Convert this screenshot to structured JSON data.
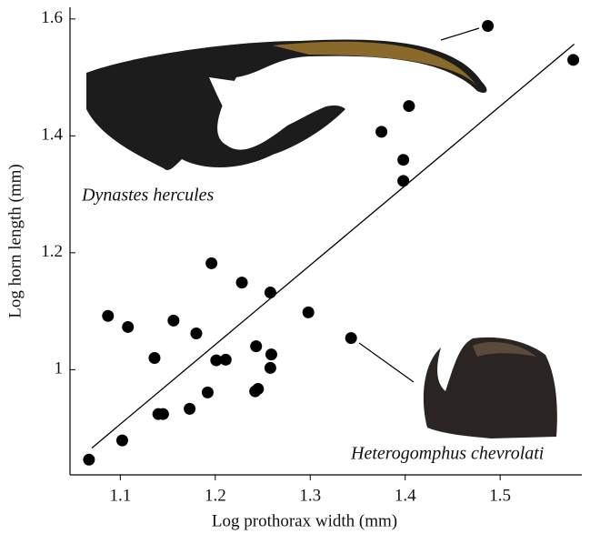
{
  "chart_data": {
    "type": "scatter",
    "x_label": "Log prothorax width (mm)",
    "y_label": "Log horn length (mm)",
    "xlim": [
      1.047,
      1.586
    ],
    "ylim": [
      0.82,
      1.62
    ],
    "xticks": [
      1.1,
      1.2,
      1.3,
      1.4,
      1.5
    ],
    "yticks": [
      1,
      1.2,
      1.4,
      1.6
    ],
    "color": "#000000",
    "x": [
      1.067,
      1.102,
      1.087,
      1.108,
      1.136,
      1.14,
      1.145,
      1.156,
      1.173,
      1.18,
      1.192,
      1.196,
      1.201,
      1.211,
      1.228,
      1.243,
      1.242,
      1.245,
      1.258,
      1.259,
      1.258,
      1.298,
      1.343,
      1.375,
      1.404,
      1.398,
      1.398,
      1.487,
      1.577
    ],
    "y": [
      0.846,
      0.879,
      1.092,
      1.073,
      1.02,
      0.924,
      0.924,
      1.084,
      0.933,
      1.062,
      0.961,
      1.182,
      1.016,
      1.017,
      1.149,
      1.04,
      0.963,
      0.967,
      1.132,
      1.026,
      1.003,
      1.098,
      1.054,
      1.407,
      1.451,
      1.359,
      1.323,
      1.588,
      1.53
    ],
    "fit_line": {
      "x": [
        1.07,
        1.578
      ],
      "y": [
        0.866,
        1.557
      ]
    },
    "annotations": [
      "Dynastes hercules",
      "Heterogomphus chevrolati"
    ]
  }
}
